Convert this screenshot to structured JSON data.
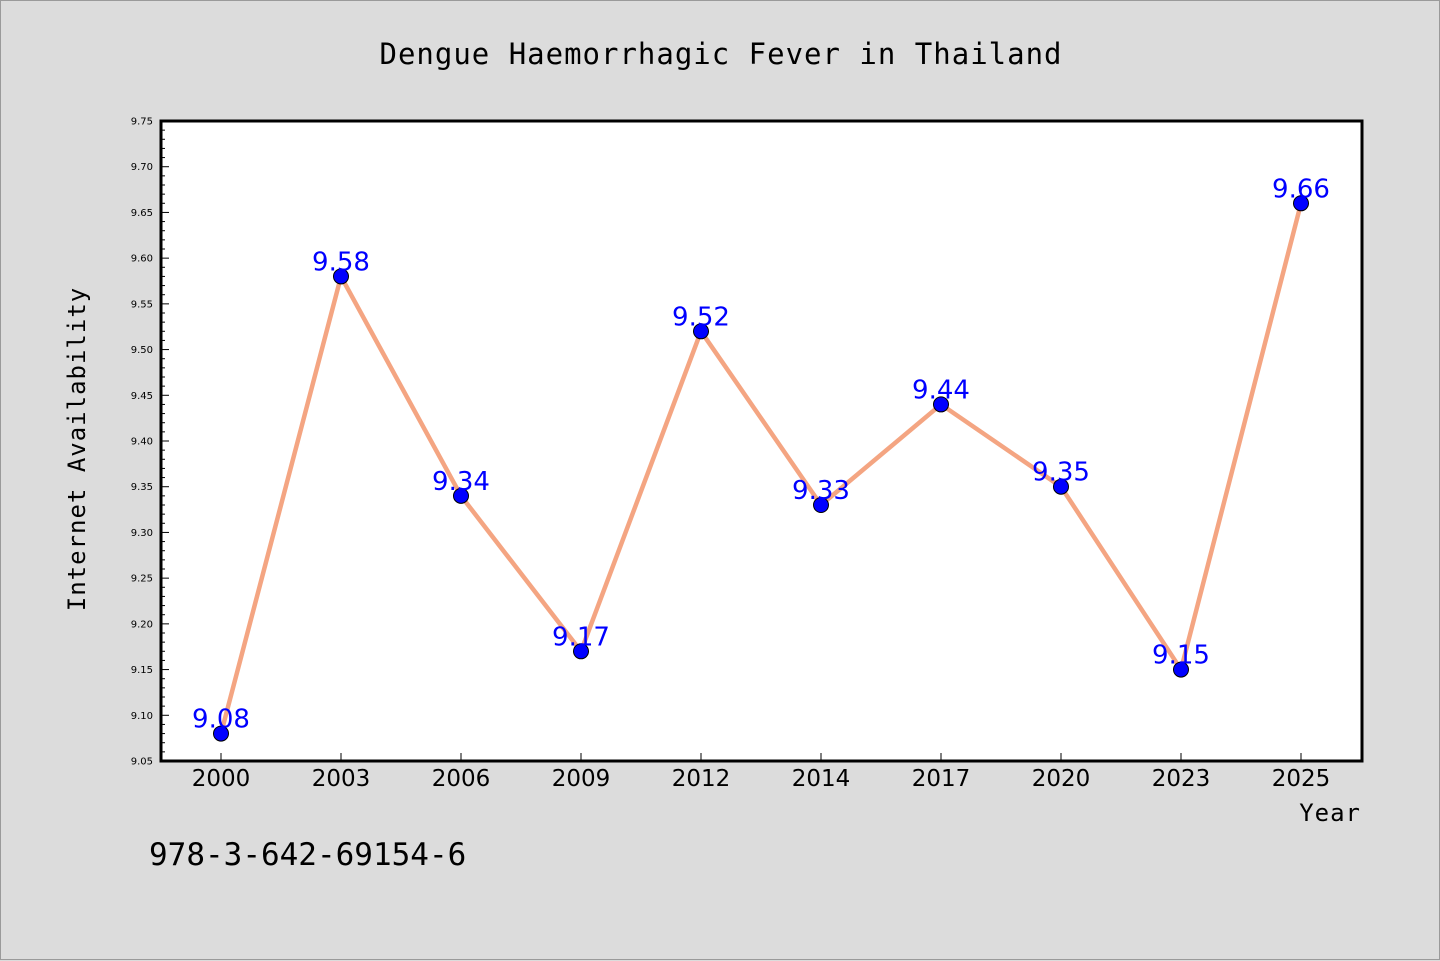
{
  "chart_data": {
    "type": "line",
    "title": "Dengue Haemorrhagic Fever in Thailand",
    "xlabel": "Year",
    "ylabel": "Internet Availability",
    "categories": [
      "2000",
      "2003",
      "2006",
      "2009",
      "2012",
      "2014",
      "2017",
      "2020",
      "2023",
      "2025"
    ],
    "series": [
      {
        "values": [
          9.08,
          9.58,
          9.34,
          9.17,
          9.52,
          9.33,
          9.44,
          9.35,
          9.15,
          9.66
        ],
        "line_color": "#f4a582",
        "marker_color": "#0000ff"
      }
    ],
    "data_labels": [
      "9.08",
      "9.58",
      "9.34",
      "9.17",
      "9.52",
      "9.33",
      "9.44",
      "9.35",
      "9.15",
      "9.66"
    ],
    "ylim": [
      9.05,
      9.75
    ],
    "yticks": [
      "9.05",
      "9.10",
      "9.15",
      "9.20",
      "9.25",
      "9.30",
      "9.35",
      "9.40",
      "9.45",
      "9.50",
      "9.55",
      "9.60",
      "9.65",
      "9.70",
      "9.75"
    ],
    "grid": false,
    "legend": "none"
  },
  "annotation": {
    "isbn": "978-3-642-69154-6"
  },
  "colors": {
    "background": "#dcdcdc",
    "plot_area": "#ffffff",
    "data_label": "#0000ff"
  }
}
